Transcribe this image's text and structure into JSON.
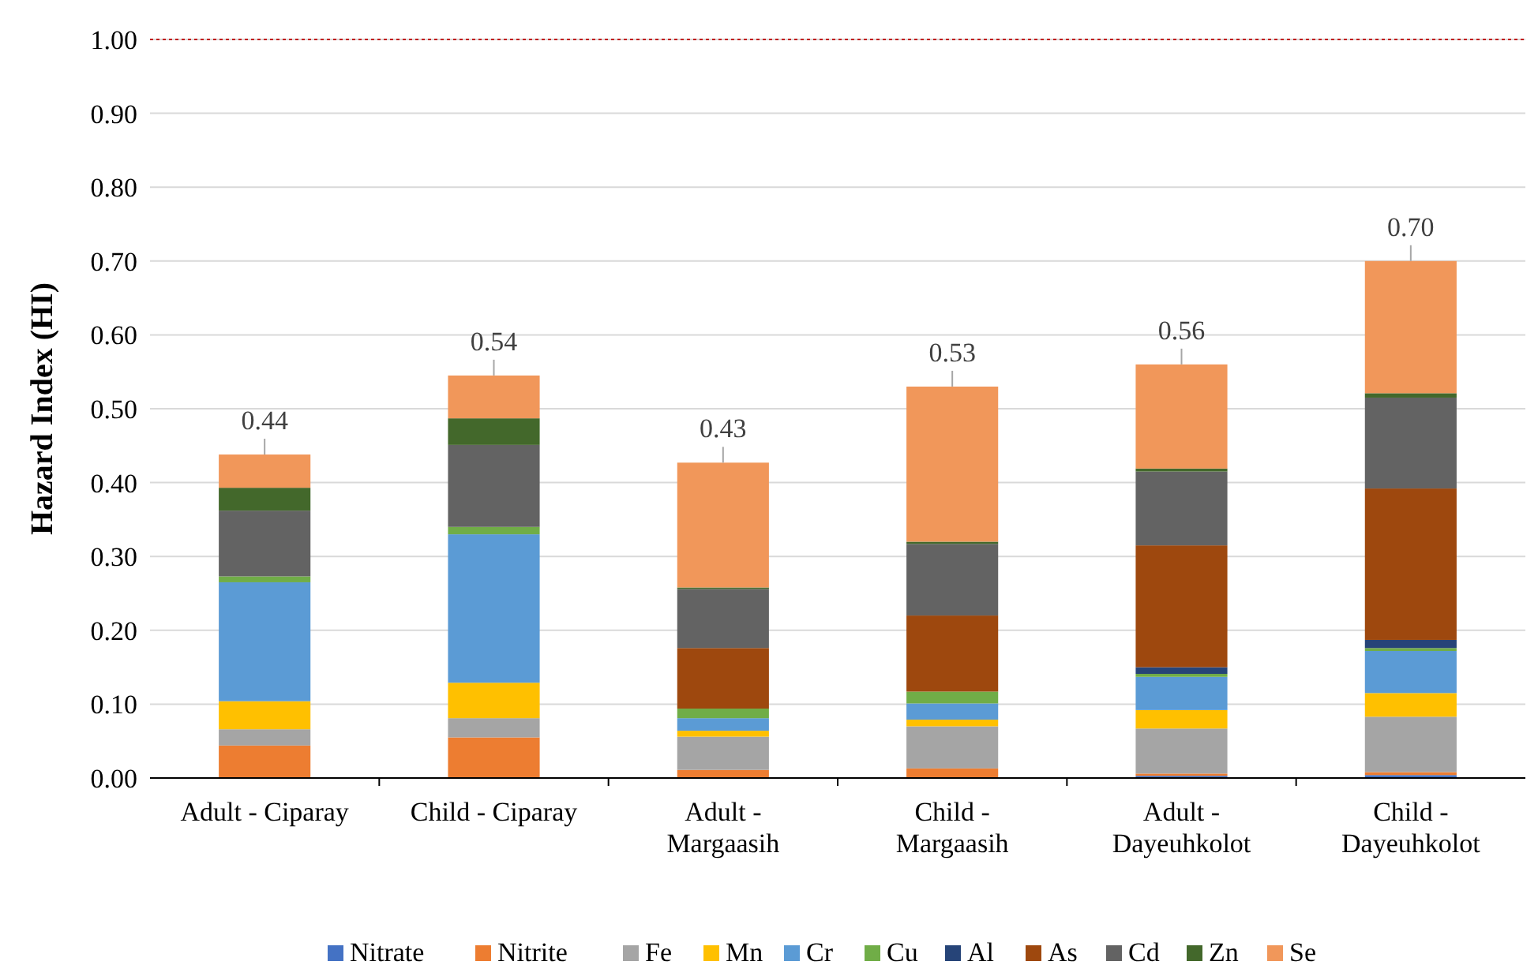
{
  "chart_data": {
    "type": "bar",
    "stacked": true,
    "ylabel": "Hazard Index (HI)",
    "categories": [
      "Adult - Ciparay",
      "Child - Ciparay",
      "Adult - Margaasih",
      "Child - Margaasih",
      "Adult - Dayeuhkolot",
      "Child - Dayeuhkolot"
    ],
    "series": [
      {
        "name": "Nitrate",
        "color": "#4472c4",
        "values": [
          0,
          0,
          0,
          0,
          0.003,
          0.004
        ]
      },
      {
        "name": "Nitrite",
        "color": "#ed7d31",
        "values": [
          0.044,
          0.055,
          0.011,
          0.013,
          0.003,
          0.004
        ]
      },
      {
        "name": "Fe",
        "color": "#a5a5a5",
        "values": [
          0.022,
          0.026,
          0.045,
          0.057,
          0.061,
          0.075
        ]
      },
      {
        "name": "Mn",
        "color": "#ffc000",
        "values": [
          0.038,
          0.048,
          0.008,
          0.009,
          0.025,
          0.032
        ]
      },
      {
        "name": "Cr",
        "color": "#5b9bd5",
        "values": [
          0.161,
          0.201,
          0.017,
          0.022,
          0.045,
          0.057
        ]
      },
      {
        "name": "Cu",
        "color": "#70ad47",
        "values": [
          0.008,
          0.01,
          0.013,
          0.016,
          0.004,
          0.004
        ]
      },
      {
        "name": "Al",
        "color": "#264478",
        "values": [
          0,
          0,
          0,
          0,
          0.009,
          0.011
        ]
      },
      {
        "name": "As",
        "color": "#9e480e",
        "values": [
          0,
          0,
          0.082,
          0.103,
          0.165,
          0.205
        ]
      },
      {
        "name": "Cd",
        "color": "#636363",
        "values": [
          0.089,
          0.111,
          0.08,
          0.097,
          0.1,
          0.123
        ]
      },
      {
        "name": "Zn",
        "color": "#43682b",
        "values": [
          0.031,
          0.036,
          0.002,
          0.003,
          0.004,
          0.006
        ]
      },
      {
        "name": "Se",
        "color": "#f1975a",
        "values": [
          0.045,
          0.058,
          0.169,
          0.21,
          0.141,
          0.179
        ]
      }
    ],
    "totals": [
      "0.44",
      "0.54",
      "0.43",
      "0.53",
      "0.56",
      "0.70"
    ],
    "ylim": [
      0,
      1
    ],
    "yticks": [
      {
        "value": 0,
        "label": "0.00"
      },
      {
        "value": 0.1,
        "label": "0.10"
      },
      {
        "value": 0.2,
        "label": "0.20"
      },
      {
        "value": 0.3,
        "label": "0.30"
      },
      {
        "value": 0.4,
        "label": "0.40"
      },
      {
        "value": 0.5,
        "label": "0.50"
      },
      {
        "value": 0.6,
        "label": "0.60"
      },
      {
        "value": 0.7,
        "label": "0.70"
      },
      {
        "value": 0.8,
        "label": "0.80"
      },
      {
        "value": 0.9,
        "label": "0.90"
      },
      {
        "value": 1,
        "label": "1.00"
      }
    ],
    "grid": "y",
    "legend": "bottom",
    "ref_lines": [
      {
        "axis": "y",
        "value": 1,
        "color": "#c00000",
        "line_style": "dotted"
      }
    ]
  }
}
